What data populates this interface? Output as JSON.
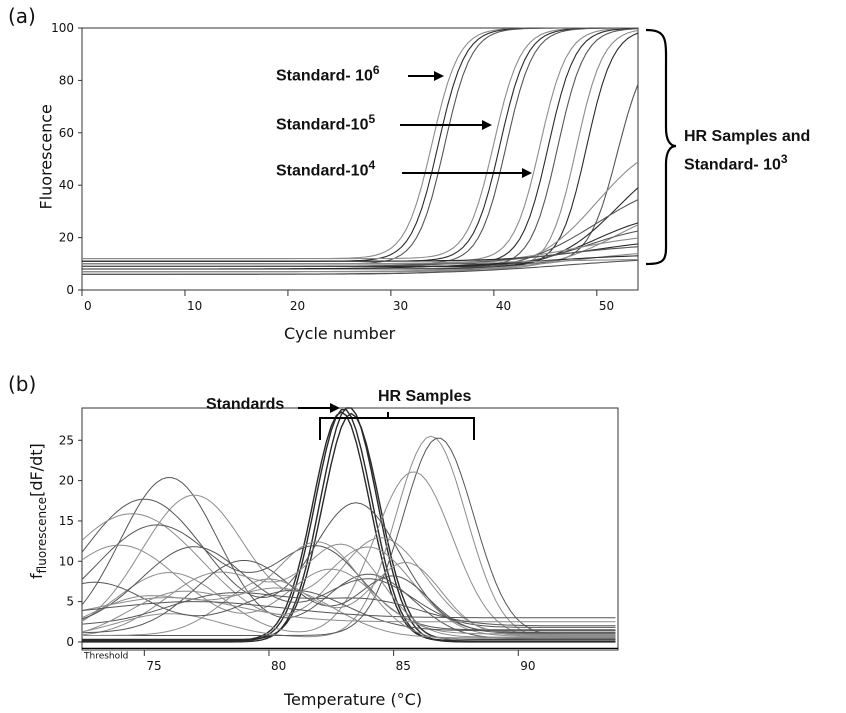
{
  "chart_data": [
    {
      "panel_label": "(a)",
      "type": "line",
      "xlabel": "Cycle number",
      "ylabel": "Fluorescence",
      "xlim": [
        0,
        54
      ],
      "ylim": [
        0,
        100
      ],
      "x_ticks": [
        "0",
        "10",
        "20",
        "30",
        "40",
        "50"
      ],
      "y_ticks": [
        "0",
        "20",
        "40",
        "60",
        "80",
        "100"
      ],
      "grid": false,
      "curve_model": "sigmoid amplification: base + (max-base)/(1+exp(-(x-midpoint)/slope)), capped at 100",
      "series": [
        {
          "group": "Standard-10^6",
          "max": 100,
          "midpoint": 34.0,
          "slope": 1.3,
          "base": 12
        },
        {
          "group": "Standard-10^6",
          "max": 100,
          "midpoint": 34.6,
          "slope": 1.3,
          "base": 11
        },
        {
          "group": "Standard-10^6",
          "max": 100,
          "midpoint": 35.2,
          "slope": 1.3,
          "base": 10
        },
        {
          "group": "Standard-10^5",
          "max": 100,
          "midpoint": 40.0,
          "slope": 1.3,
          "base": 12
        },
        {
          "group": "Standard-10^5",
          "max": 100,
          "midpoint": 40.6,
          "slope": 1.3,
          "base": 11
        },
        {
          "group": "Standard-10^5",
          "max": 100,
          "midpoint": 41.2,
          "slope": 1.3,
          "base": 10
        },
        {
          "group": "Standard-10^4",
          "max": 100,
          "midpoint": 44.5,
          "slope": 1.3,
          "base": 11
        },
        {
          "group": "Standard-10^4",
          "max": 100,
          "midpoint": 45.3,
          "slope": 1.3,
          "base": 10
        },
        {
          "group": "Standard-10^4",
          "max": 100,
          "midpoint": 46.2,
          "slope": 1.3,
          "base": 9
        },
        {
          "group": "HR Samples and Standard-10^3",
          "max": 100,
          "midpoint": 48.0,
          "slope": 1.3,
          "base": 8
        },
        {
          "group": "HR Samples and Standard-10^3",
          "max": 100,
          "midpoint": 49.0,
          "slope": 1.3,
          "base": 9
        },
        {
          "group": "HR Samples and Standard-10^3",
          "max": 95,
          "midpoint": 52.0,
          "slope": 1.4,
          "base": 10
        },
        {
          "group": "HR Samples and Standard-10^3",
          "max": 60,
          "midpoint": 50.0,
          "slope": 3.0,
          "base": 7
        },
        {
          "group": "HR Samples and Standard-10^3",
          "max": 55,
          "midpoint": 52.0,
          "slope": 3.0,
          "base": 8
        },
        {
          "group": "HR Samples and Standard-10^3",
          "max": 45,
          "midpoint": 50.0,
          "slope": 4.0,
          "base": 6
        },
        {
          "group": "HR Samples and Standard-10^3",
          "max": 35,
          "midpoint": 52.0,
          "slope": 3.5,
          "base": 7
        },
        {
          "group": "HR Samples and Standard-10^3",
          "max": 30,
          "midpoint": 50.0,
          "slope": 3.0,
          "base": 9
        },
        {
          "group": "HR Samples and Standard-10^3",
          "max": 26,
          "midpoint": 49.0,
          "slope": 3.5,
          "base": 8
        },
        {
          "group": "HR Samples and Standard-10^3",
          "max": 22,
          "midpoint": 48.0,
          "slope": 4.0,
          "base": 10
        },
        {
          "group": "HR Samples and Standard-10^3",
          "max": 20,
          "midpoint": 50.0,
          "slope": 4.0,
          "base": 11
        },
        {
          "group": "HR Samples and Standard-10^3",
          "max": 18,
          "midpoint": 46.0,
          "slope": 5.0,
          "base": 9
        },
        {
          "group": "HR Samples and Standard-10^3",
          "max": 16,
          "midpoint": 48.0,
          "slope": 5.0,
          "base": 7
        },
        {
          "group": "HR Samples and Standard-10^3",
          "max": 14,
          "midpoint": 44.0,
          "slope": 6.0,
          "base": 8
        },
        {
          "group": "HR Samples and Standard-10^3",
          "max": 13,
          "midpoint": 47.0,
          "slope": 6.0,
          "base": 6
        },
        {
          "group": "HR Samples and Standard-10^3",
          "max": 12,
          "midpoint": 45.0,
          "slope": 6.0,
          "base": 10
        }
      ]
    },
    {
      "panel_label": "(b)",
      "type": "line",
      "xlabel": "Temperature (°C)",
      "ylabel_main": "f",
      "ylabel_sub": "fluorescence",
      "ylabel_tail": "[dF/dt]",
      "xlim": [
        72.5,
        94
      ],
      "ylim": [
        -1,
        29
      ],
      "x_ticks": [
        "75",
        "80",
        "85",
        "90"
      ],
      "y_ticks": [
        "0",
        "5",
        "10",
        "15",
        "20",
        "25"
      ],
      "threshold_label": "Threshold",
      "threshold_value": -0.8,
      "grid": false,
      "curve_model": "sum of gaussian melt peaks: base + Σ amp*exp(-((T-center)/width)^2)",
      "series": [
        {
          "group": "Standards",
          "base": 0.2,
          "peaks": [
            [
              82.9,
              28.3,
              1.6
            ]
          ]
        },
        {
          "group": "Standards",
          "base": 0.1,
          "peaks": [
            [
              83.0,
              28.8,
              1.6
            ]
          ]
        },
        {
          "group": "Standards",
          "base": 0.0,
          "peaks": [
            [
              83.2,
              29.2,
              1.6
            ]
          ]
        },
        {
          "group": "Standards",
          "base": 0.3,
          "peaks": [
            [
              83.3,
              28.0,
              1.6
            ]
          ]
        },
        {
          "group": "HR Samples",
          "base": 0.5,
          "peaks": [
            [
              86.5,
              25.0,
              2.0
            ],
            [
              76.0,
              3.0,
              3.0
            ]
          ]
        },
        {
          "group": "HR Samples",
          "base": 0.8,
          "peaks": [
            [
              86.8,
              24.5,
              2.0
            ]
          ]
        },
        {
          "group": "HR Samples",
          "base": 0.6,
          "peaks": [
            [
              85.8,
              20.5,
              2.2
            ],
            [
              76.0,
              8.0,
              3.0
            ]
          ]
        },
        {
          "group": "HR Samples",
          "base": 0.4,
          "peaks": [
            [
              76.0,
              20.0,
              2.8
            ],
            [
              84.0,
              8.0,
              2.5
            ]
          ]
        },
        {
          "group": "HR Samples",
          "base": 0.7,
          "peaks": [
            [
              77.0,
              17.5,
              3.0
            ],
            [
              84.0,
              11.0,
              2.5
            ]
          ]
        },
        {
          "group": "HR Samples",
          "base": 1.2,
          "peaks": [
            [
              75.0,
              16.5,
              3.5
            ],
            [
              83.5,
              16.0,
              2.5
            ]
          ]
        },
        {
          "group": "HR Samples",
          "base": 0.9,
          "peaks": [
            [
              74.5,
              15.0,
              4.0
            ],
            [
              84.5,
              12.0,
              2.5
            ]
          ]
        },
        {
          "group": "HR Samples",
          "base": 1.5,
          "peaks": [
            [
              75.5,
              13.0,
              3.5
            ],
            [
              82.0,
              10.0,
              2.5
            ]
          ]
        },
        {
          "group": "HR Samples",
          "base": 1.0,
          "peaks": [
            [
              74.0,
              11.0,
              3.5
            ],
            [
              82.5,
              8.0,
              2.5
            ]
          ]
        },
        {
          "group": "HR Samples",
          "base": 1.8,
          "peaks": [
            [
              77.0,
              10.0,
              3.0
            ],
            [
              84.0,
              6.0,
              2.5
            ]
          ]
        },
        {
          "group": "HR Samples",
          "base": 0.6,
          "peaks": [
            [
              78.0,
              8.0,
              3.0
            ],
            [
              83.0,
              11.0,
              2.2
            ]
          ]
        },
        {
          "group": "HR Samples",
          "base": 1.1,
          "peaks": [
            [
              79.0,
              9.0,
              2.8
            ],
            [
              85.0,
              7.0,
              2.0
            ]
          ]
        },
        {
          "group": "HR Samples",
          "base": 0.8,
          "peaks": [
            [
              80.0,
              7.0,
              2.5
            ],
            [
              85.5,
              9.0,
              2.0
            ]
          ]
        },
        {
          "group": "HR Samples",
          "base": 1.4,
          "peaks": [
            [
              73.0,
              6.0,
              3.0
            ],
            [
              81.0,
              5.0,
              3.0
            ]
          ]
        },
        {
          "group": "HR Samples",
          "base": 2.5,
          "peaks": [
            [
              76.0,
              3.0,
              4.0
            ]
          ]
        },
        {
          "group": "HR Samples",
          "base": 2.0,
          "peaks": [
            [
              78.5,
              4.0,
              3.5
            ],
            [
              84.0,
              3.0,
              3.0
            ]
          ]
        },
        {
          "group": "HR Samples",
          "base": 0.5,
          "peaks": [
            [
              75.0,
              5.0,
              3.0
            ],
            [
              80.5,
              6.0,
              3.0
            ]
          ]
        },
        {
          "group": "HR Samples",
          "base": 3.0,
          "peaks": [
            [
              77.0,
              2.0,
              5.0
            ]
          ]
        },
        {
          "group": "HR Samples",
          "base": 0.2,
          "peaks": [
            [
              82.0,
              12.0,
              2.5
            ],
            [
              76.5,
              6.0,
              3.0
            ]
          ]
        }
      ]
    }
  ],
  "annotations_a": {
    "std6_text": "Standard- 10",
    "std6_sup": "6",
    "std5_text": "Standard-10",
    "std5_sup": "5",
    "std4_text": "Standard-10",
    "std4_sup": "4",
    "hr_line1": "HR Samples and",
    "hr_line2_text": "Standard- 10",
    "hr_line2_sup": "3"
  },
  "annotations_b": {
    "standards": "Standards",
    "hr_samples": "HR Samples"
  },
  "colors": {
    "axis": "#333333",
    "curve_dark": "#2a2a2a",
    "curve_light": "#8c8c8c",
    "curve_mid": "#555555"
  }
}
